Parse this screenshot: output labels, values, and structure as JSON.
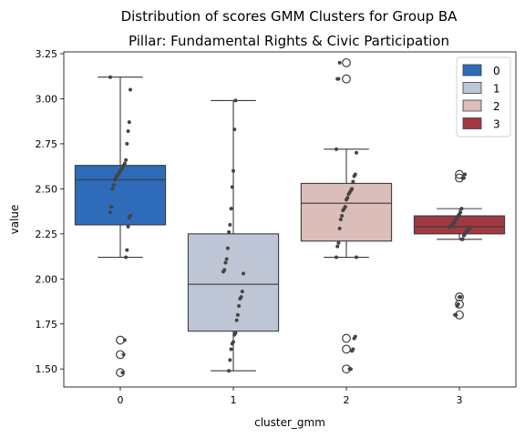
{
  "chart_data": {
    "type": "box",
    "title": "Distribution of scores GMM Clusters for Group BA",
    "subtitle": "Pillar: Fundamental Rights & Civic Participation",
    "xlabel": "cluster_gmm",
    "ylabel": "value",
    "categories": [
      "0",
      "1",
      "2",
      "3"
    ],
    "ylim": [
      1.4,
      3.26
    ],
    "yticks": [
      1.5,
      1.75,
      2.0,
      2.25,
      2.5,
      2.75,
      3.0,
      3.25
    ],
    "ytick_labels": [
      "1.50",
      "1.75",
      "2.00",
      "2.25",
      "2.50",
      "2.75",
      "3.00",
      "3.25"
    ],
    "legend": {
      "placement": "top-right",
      "entries": [
        "0",
        "1",
        "2",
        "3"
      ]
    },
    "grid": false,
    "boxes": [
      {
        "category": "0",
        "color": "#2e6bb8",
        "whisker_low": 2.12,
        "q1": 2.3,
        "median": 2.55,
        "q3": 2.63,
        "whisker_high": 3.12,
        "outliers": [
          1.66,
          1.58,
          1.48
        ]
      },
      {
        "category": "1",
        "color": "#bec6d5",
        "whisker_low": 1.49,
        "q1": 1.71,
        "median": 1.97,
        "q3": 2.25,
        "whisker_high": 2.99,
        "outliers": []
      },
      {
        "category": "2",
        "color": "#dbbdba",
        "whisker_low": 2.12,
        "q1": 2.21,
        "median": 2.42,
        "q3": 2.53,
        "whisker_high": 2.72,
        "outliers": [
          3.2,
          3.11,
          1.67,
          1.61,
          1.5
        ]
      },
      {
        "category": "3",
        "color": "#a0393f",
        "whisker_low": 2.22,
        "q1": 2.25,
        "median": 2.29,
        "q3": 2.35,
        "whisker_high": 2.39,
        "outliers": [
          2.58,
          2.56,
          1.9,
          1.86,
          1.8
        ]
      }
    ],
    "strip_points": [
      [
        3.12,
        3.05,
        2.87,
        2.82,
        2.75,
        2.66,
        2.64,
        2.63,
        2.62,
        2.61,
        2.6,
        2.59,
        2.58,
        2.57,
        2.56,
        2.55,
        2.52,
        2.5,
        2.4,
        2.37,
        2.35,
        2.34,
        2.29,
        2.16,
        2.12,
        1.66,
        1.58,
        1.48
      ],
      [
        2.99,
        2.83,
        2.6,
        2.51,
        2.39,
        2.3,
        2.26,
        2.17,
        2.11,
        2.09,
        2.05,
        2.04,
        2.03,
        1.93,
        1.9,
        1.89,
        1.85,
        1.8,
        1.77,
        1.7,
        1.69,
        1.65,
        1.64,
        1.61,
        1.55,
        1.49
      ],
      [
        3.2,
        3.11,
        3.11,
        2.72,
        2.7,
        2.58,
        2.57,
        2.54,
        2.5,
        2.49,
        2.48,
        2.47,
        2.45,
        2.44,
        2.4,
        2.39,
        2.38,
        2.35,
        2.33,
        2.28,
        2.2,
        2.18,
        2.12,
        2.12,
        1.68,
        1.67,
        1.61,
        1.6,
        1.5,
        1.5
      ],
      [
        2.58,
        2.56,
        2.56,
        2.39,
        2.37,
        2.36,
        2.35,
        2.34,
        2.33,
        2.32,
        2.31,
        2.3,
        2.3,
        2.29,
        2.29,
        2.28,
        2.27,
        2.27,
        2.26,
        2.25,
        2.24,
        2.22,
        2.22,
        1.9,
        1.9,
        1.86,
        1.85,
        1.8,
        1.8
      ]
    ]
  }
}
